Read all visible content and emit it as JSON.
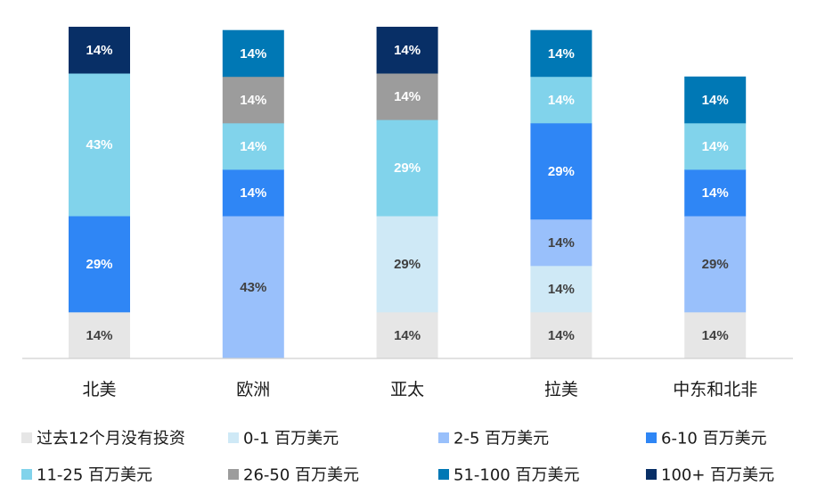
{
  "chart_data": {
    "type": "bar",
    "stacked": true,
    "percent": true,
    "categories": [
      "北美",
      "欧洲",
      "亚太",
      "拉美",
      "中东和北非"
    ],
    "series": [
      {
        "name": "过去12个月没有投资",
        "color": "#e6e6e6",
        "text_color": "#404040",
        "values": [
          14,
          0,
          14,
          14,
          14
        ]
      },
      {
        "name": "0-1 百万美元",
        "color": "#cfe9f6",
        "text_color": "#404040",
        "values": [
          0,
          0,
          29,
          14,
          0
        ]
      },
      {
        "name": "2-5 百万美元",
        "color": "#99c0fb",
        "text_color": "#404040",
        "values": [
          0,
          43,
          0,
          14,
          29
        ]
      },
      {
        "name": "6-10 百万美元",
        "color": "#2f86f5",
        "text_color": "#ffffff",
        "values": [
          29,
          14,
          0,
          29,
          14
        ]
      },
      {
        "name": "11-25 百万美元",
        "color": "#81d3eb",
        "text_color": "#ffffff",
        "values": [
          43,
          14,
          29,
          14,
          14
        ]
      },
      {
        "name": "26-50 百万美元",
        "color": "#9c9c9c",
        "text_color": "#ffffff",
        "values": [
          0,
          14,
          14,
          0,
          0
        ]
      },
      {
        "name": "51-100 百万美元",
        "color": "#0078b5",
        "text_color": "#ffffff",
        "values": [
          0,
          14,
          0,
          14,
          14
        ]
      },
      {
        "name": "100+ 百万美元",
        "color": "#082f66",
        "text_color": "#ffffff",
        "values": [
          14,
          0,
          14,
          0,
          0
        ]
      }
    ],
    "totals": [
      100,
      99,
      100,
      99,
      85
    ],
    "data_label_format": "{v}%",
    "grid": false,
    "legend_position": "bottom",
    "title": "",
    "xlabel": "",
    "ylabel": ""
  }
}
